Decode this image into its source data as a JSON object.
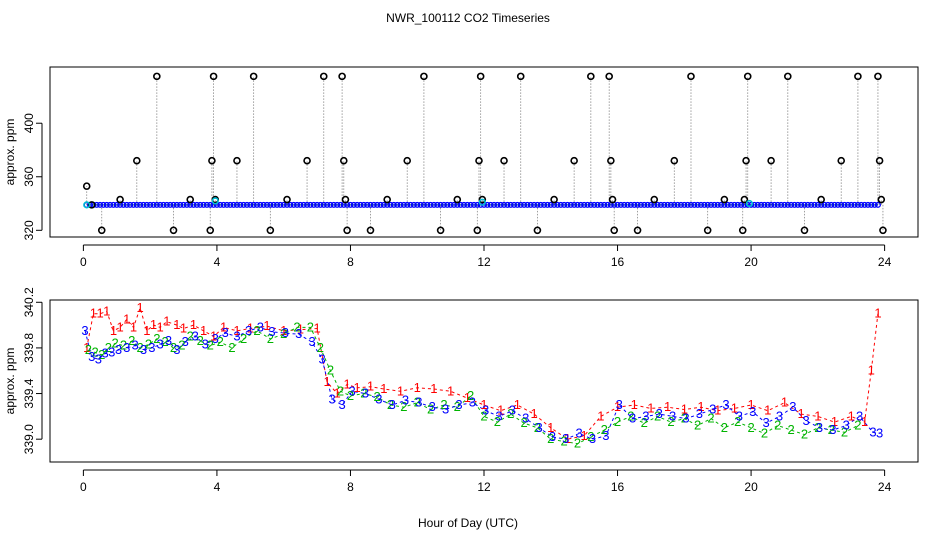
{
  "chart_data": [
    {
      "type": "scatter",
      "title": "NWR_100112  CO2 Timeseries",
      "xlabel": "",
      "ylabel": "approx. ppm",
      "xlim": [
        -1,
        25
      ],
      "ylim": [
        315,
        442
      ],
      "xticks": [
        "0",
        "4",
        "8",
        "12",
        "16",
        "20",
        "24"
      ],
      "yticks": [
        "320",
        "360",
        "400"
      ],
      "baseline_ppm": 339,
      "spikes": [
        {
          "x": 0.1,
          "y": 353
        },
        {
          "x": 0.25,
          "y": 339
        },
        {
          "x": 0.55,
          "y": 320
        },
        {
          "x": 1.1,
          "y": 343
        },
        {
          "x": 1.6,
          "y": 372
        },
        {
          "x": 2.2,
          "y": 435
        },
        {
          "x": 2.7,
          "y": 320
        },
        {
          "x": 3.2,
          "y": 343
        },
        {
          "x": 3.8,
          "y": 320
        },
        {
          "x": 3.85,
          "y": 372
        },
        {
          "x": 3.9,
          "y": 435
        },
        {
          "x": 3.95,
          "y": 343
        },
        {
          "x": 4.6,
          "y": 372
        },
        {
          "x": 5.1,
          "y": 435
        },
        {
          "x": 5.6,
          "y": 320
        },
        {
          "x": 6.1,
          "y": 343
        },
        {
          "x": 6.7,
          "y": 372
        },
        {
          "x": 7.2,
          "y": 435
        },
        {
          "x": 7.75,
          "y": 435
        },
        {
          "x": 7.8,
          "y": 372
        },
        {
          "x": 7.85,
          "y": 343
        },
        {
          "x": 7.9,
          "y": 320
        },
        {
          "x": 8.6,
          "y": 320
        },
        {
          "x": 9.1,
          "y": 343
        },
        {
          "x": 9.7,
          "y": 372
        },
        {
          "x": 10.2,
          "y": 435
        },
        {
          "x": 10.7,
          "y": 320
        },
        {
          "x": 11.2,
          "y": 343
        },
        {
          "x": 11.8,
          "y": 320
        },
        {
          "x": 11.85,
          "y": 372
        },
        {
          "x": 11.9,
          "y": 435
        },
        {
          "x": 11.95,
          "y": 343
        },
        {
          "x": 12.6,
          "y": 372
        },
        {
          "x": 13.1,
          "y": 435
        },
        {
          "x": 13.6,
          "y": 320
        },
        {
          "x": 14.1,
          "y": 343
        },
        {
          "x": 14.7,
          "y": 372
        },
        {
          "x": 15.2,
          "y": 435
        },
        {
          "x": 15.75,
          "y": 435
        },
        {
          "x": 15.8,
          "y": 372
        },
        {
          "x": 15.85,
          "y": 343
        },
        {
          "x": 15.9,
          "y": 320
        },
        {
          "x": 16.6,
          "y": 320
        },
        {
          "x": 17.1,
          "y": 343
        },
        {
          "x": 17.7,
          "y": 372
        },
        {
          "x": 18.2,
          "y": 435
        },
        {
          "x": 18.7,
          "y": 320
        },
        {
          "x": 19.2,
          "y": 343
        },
        {
          "x": 19.75,
          "y": 320
        },
        {
          "x": 19.8,
          "y": 343
        },
        {
          "x": 19.85,
          "y": 372
        },
        {
          "x": 19.9,
          "y": 435
        },
        {
          "x": 20.6,
          "y": 372
        },
        {
          "x": 21.1,
          "y": 435
        },
        {
          "x": 21.6,
          "y": 320
        },
        {
          "x": 22.1,
          "y": 343
        },
        {
          "x": 22.7,
          "y": 372
        },
        {
          "x": 23.2,
          "y": 435
        },
        {
          "x": 23.8,
          "y": 435
        },
        {
          "x": 23.85,
          "y": 372
        },
        {
          "x": 23.9,
          "y": 343
        },
        {
          "x": 23.95,
          "y": 320
        }
      ],
      "dense_series": [
        {
          "name": "background",
          "color": "#0000ff",
          "y": 339,
          "x_start": 0.1,
          "x_end": 23.8,
          "step": 0.1
        }
      ],
      "highlights": [
        {
          "x": 3.95,
          "y": 342,
          "color": "#00bcd4"
        },
        {
          "x": 11.95,
          "y": 341,
          "color": "#00bcd4"
        },
        {
          "x": 19.95,
          "y": 340,
          "color": "#00bcd4"
        },
        {
          "x": 0.1,
          "y": 339,
          "color": "#00bcd4"
        }
      ]
    },
    {
      "type": "line",
      "xlabel": "Hour of Day (UTC)",
      "ylabel": "approx. ppm",
      "xlim": [
        -1,
        25
      ],
      "ylim": [
        338.8,
        340.22
      ],
      "xticks": [
        "0",
        "4",
        "8",
        "12",
        "16",
        "20",
        "24"
      ],
      "yticks": [
        "339.0",
        "339.4",
        "339.8",
        "340.2"
      ],
      "series": [
        {
          "name": "1",
          "color": "#ff0000",
          "x": [
            0.1,
            0.3,
            0.5,
            0.7,
            0.9,
            1.1,
            1.3,
            1.5,
            1.7,
            1.9,
            2.1,
            2.3,
            2.5,
            2.8,
            3.0,
            3.3,
            3.6,
            3.9,
            4.2,
            4.6,
            5.0,
            5.5,
            6.0,
            6.5,
            7.0,
            7.3,
            7.6,
            7.9,
            8.2,
            8.6,
            9.0,
            9.5,
            10.0,
            10.5,
            11.0,
            11.5,
            12.0,
            12.5,
            13.0,
            13.5,
            14.0,
            14.5,
            15.0,
            15.5,
            16.0,
            16.5,
            17.0,
            17.5,
            18.0,
            18.5,
            19.0,
            19.5,
            20.0,
            20.5,
            21.0,
            21.5,
            22.0,
            22.5,
            23.0,
            23.4,
            23.6,
            23.8
          ],
          "y": [
            339.8,
            340.1,
            340.1,
            340.12,
            339.95,
            339.98,
            340.05,
            339.98,
            340.15,
            339.95,
            340.0,
            339.98,
            340.03,
            340.0,
            339.97,
            340.0,
            339.95,
            339.9,
            339.98,
            339.95,
            339.97,
            339.99,
            339.95,
            339.96,
            339.97,
            339.5,
            339.4,
            339.48,
            339.45,
            339.46,
            339.44,
            339.42,
            339.45,
            339.44,
            339.42,
            339.36,
            339.3,
            339.25,
            339.3,
            339.22,
            339.1,
            339.0,
            339.03,
            339.2,
            339.28,
            339.3,
            339.27,
            339.28,
            339.26,
            339.28,
            339.25,
            339.27,
            339.3,
            339.25,
            339.32,
            339.22,
            339.2,
            339.15,
            339.2,
            339.15,
            339.6,
            340.1
          ]
        },
        {
          "name": "2",
          "color": "#00b400",
          "x": [
            0.15,
            0.35,
            0.55,
            0.75,
            0.95,
            1.2,
            1.45,
            1.7,
            1.95,
            2.2,
            2.45,
            2.7,
            2.95,
            3.2,
            3.5,
            3.8,
            4.1,
            4.45,
            4.8,
            5.2,
            5.6,
            6.0,
            6.4,
            6.8,
            7.1,
            7.4,
            7.7,
            8.0,
            8.4,
            8.8,
            9.2,
            9.6,
            10.0,
            10.4,
            10.8,
            11.2,
            11.6,
            12.0,
            12.4,
            12.8,
            13.2,
            13.6,
            14.0,
            14.4,
            14.8,
            15.2,
            15.6,
            16.0,
            16.4,
            16.8,
            17.2,
            17.6,
            18.0,
            18.4,
            18.8,
            19.2,
            19.6,
            20.0,
            20.4,
            20.8,
            21.2,
            21.6,
            22.0,
            22.4,
            22.8,
            23.2
          ],
          "y": [
            339.78,
            339.76,
            339.74,
            339.8,
            339.84,
            339.82,
            339.86,
            339.8,
            339.83,
            339.88,
            339.85,
            339.8,
            339.82,
            339.9,
            339.86,
            339.82,
            339.85,
            339.8,
            339.88,
            339.95,
            339.88,
            339.92,
            339.98,
            339.98,
            339.8,
            339.6,
            339.42,
            339.38,
            339.4,
            339.37,
            339.3,
            339.28,
            339.32,
            339.26,
            339.3,
            339.28,
            339.38,
            339.2,
            339.15,
            339.22,
            339.14,
            339.1,
            339.0,
            338.98,
            338.96,
            339.02,
            339.08,
            339.15,
            339.2,
            339.14,
            339.2,
            339.15,
            339.18,
            339.12,
            339.18,
            339.1,
            339.15,
            339.1,
            339.05,
            339.12,
            339.08,
            339.04,
            339.1,
            339.08,
            339.06,
            339.12
          ]
        },
        {
          "name": "3",
          "color": "#0000ff",
          "x": [
            0.05,
            0.25,
            0.45,
            0.65,
            0.85,
            1.05,
            1.3,
            1.55,
            1.8,
            2.05,
            2.3,
            2.55,
            2.8,
            3.05,
            3.35,
            3.65,
            3.95,
            4.25,
            4.6,
            4.95,
            5.3,
            5.65,
            6.05,
            6.45,
            6.85,
            7.15,
            7.45,
            7.75,
            8.05,
            8.45,
            8.85,
            9.25,
            9.65,
            10.05,
            10.45,
            10.85,
            11.25,
            11.65,
            12.05,
            12.45,
            12.85,
            13.25,
            13.65,
            14.05,
            14.45,
            14.85,
            15.25,
            15.65,
            16.05,
            16.45,
            16.85,
            17.25,
            17.65,
            18.05,
            18.45,
            18.85,
            19.25,
            19.65,
            20.05,
            20.45,
            20.85,
            21.25,
            21.65,
            22.05,
            22.45,
            22.85,
            23.25,
            23.65,
            23.85
          ],
          "y": [
            339.95,
            339.72,
            339.7,
            339.75,
            339.76,
            339.78,
            339.8,
            339.82,
            339.78,
            339.8,
            339.83,
            339.86,
            339.78,
            339.85,
            339.9,
            339.83,
            339.88,
            339.93,
            339.9,
            339.95,
            339.98,
            339.94,
            339.93,
            339.92,
            339.85,
            339.7,
            339.35,
            339.3,
            339.42,
            339.4,
            339.35,
            339.3,
            339.34,
            339.32,
            339.28,
            339.26,
            339.3,
            339.32,
            339.25,
            339.2,
            339.25,
            339.18,
            339.1,
            339.02,
            339.0,
            339.05,
            339.0,
            339.03,
            339.3,
            339.18,
            339.2,
            339.22,
            339.2,
            339.18,
            339.22,
            339.26,
            339.3,
            339.2,
            339.24,
            339.14,
            339.2,
            339.28,
            339.16,
            339.1,
            339.08,
            339.12,
            339.2,
            339.06,
            339.05
          ]
        }
      ]
    }
  ]
}
